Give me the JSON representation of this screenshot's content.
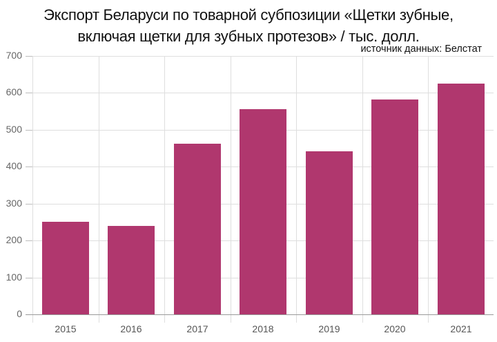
{
  "title": {
    "line1": "Экспорт Беларуси по товарной субпозиции «Щетки зубные,",
    "line2": "включая щетки для зубных протезов» / тыс. долл."
  },
  "source": "источник данных: Белстат",
  "colors": {
    "bar": "#b0376e",
    "grid": "#dedede",
    "axis_text": "#666666"
  },
  "chart_data": {
    "type": "bar",
    "title": "Экспорт Беларуси по товарной субпозиции «Щетки зубные, включая щетки для зубных протезов» / тыс. долл.",
    "subtitle": "источник данных: Белстат",
    "categories": [
      "2015",
      "2016",
      "2017",
      "2018",
      "2019",
      "2020",
      "2021"
    ],
    "values": [
      251,
      240,
      462,
      556,
      442,
      582,
      626
    ],
    "xlabel": "",
    "ylabel": "",
    "ylim": [
      0,
      700
    ],
    "yticks": [
      0,
      100,
      200,
      300,
      400,
      500,
      600,
      700
    ],
    "grid": true,
    "legend": null
  }
}
